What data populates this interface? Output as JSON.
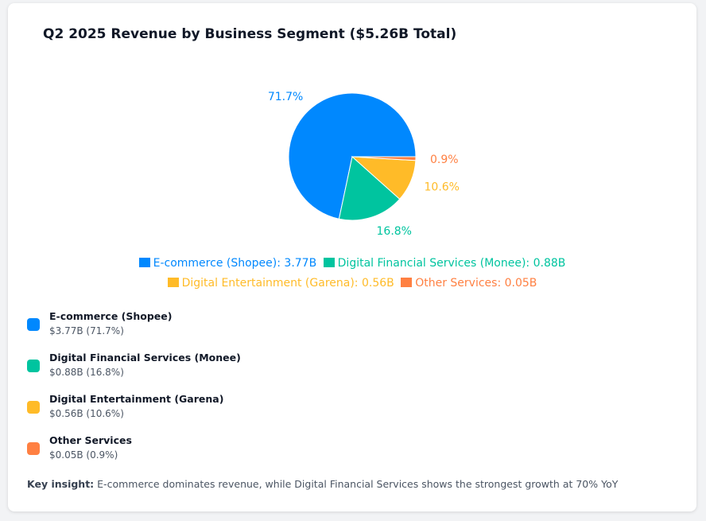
{
  "chart_data": {
    "type": "pie",
    "title": "Q2 2025 Revenue by Business Segment ($5.26B Total)",
    "slices": [
      {
        "label": "E-commerce (Shopee)",
        "value": 3.77,
        "percent": 71.7,
        "percent_label": "71.7%",
        "legend_label": "E-commerce (Shopee): 3.77B",
        "detail_value": "$3.77B (71.7%)",
        "color": "#0088fe"
      },
      {
        "label": "Digital Financial Services (Monee)",
        "value": 0.88,
        "percent": 16.8,
        "percent_label": "16.8%",
        "legend_label": "Digital Financial Services (Monee): 0.88B",
        "detail_value": "$0.88B (16.8%)",
        "color": "#00c49f"
      },
      {
        "label": "Digital Entertainment (Garena)",
        "value": 0.56,
        "percent": 10.6,
        "percent_label": "10.6%",
        "legend_label": "Digital Entertainment (Garena): 0.56B",
        "detail_value": "$0.56B (10.6%)",
        "color": "#ffbb28"
      },
      {
        "label": "Other Services",
        "value": 0.05,
        "percent": 0.9,
        "percent_label": "0.9%",
        "legend_label": "Other Services: 0.05B",
        "detail_value": "$0.05B (0.9%)",
        "color": "#ff8042"
      }
    ],
    "legend_position": "bottom"
  },
  "insight": {
    "label": "Key insight:",
    "text": " E-commerce dominates revenue, while Digital Financial Services shows the strongest growth at 70% YoY"
  }
}
